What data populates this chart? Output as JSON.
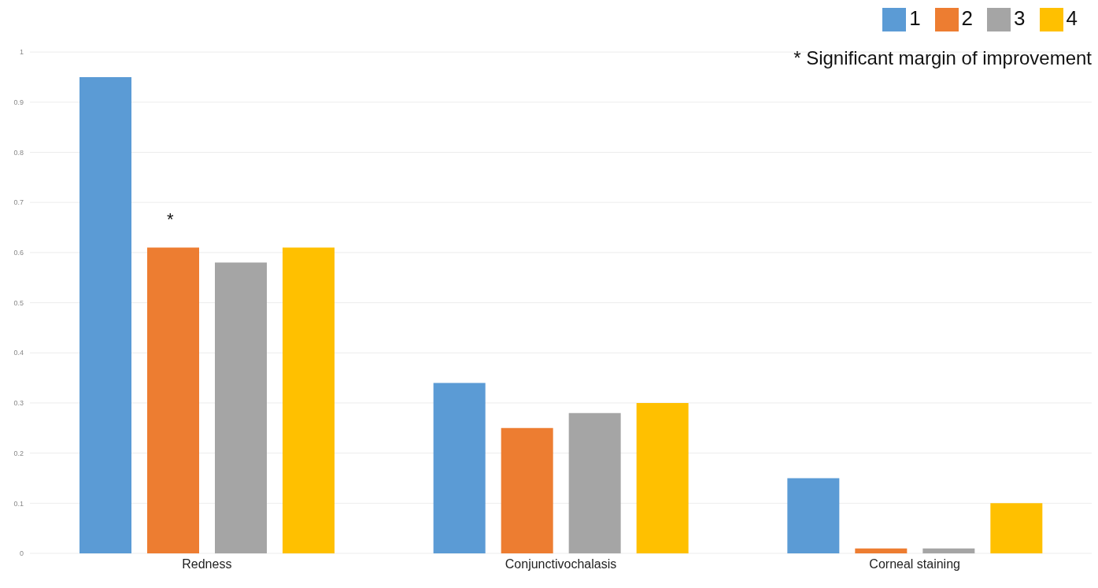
{
  "chart_data": {
    "type": "bar",
    "categories": [
      "Redness",
      "Conjunctivochalasis",
      "Corneal staining"
    ],
    "series": [
      {
        "name": "1",
        "color": "#5b9bd5",
        "values": [
          0.95,
          0.34,
          0.15
        ]
      },
      {
        "name": "2",
        "color": "#ed7d31",
        "values": [
          0.61,
          0.25,
          0.01
        ]
      },
      {
        "name": "3",
        "color": "#a5a5a5",
        "values": [
          0.58,
          0.28,
          0.01
        ]
      },
      {
        "name": "4",
        "color": "#ffc000",
        "values": [
          0.61,
          0.3,
          0.1
        ]
      }
    ],
    "ylim": [
      0,
      1
    ],
    "yticks": [
      0,
      0.1,
      0.2,
      0.3,
      0.4,
      0.5,
      0.6,
      0.7,
      0.8,
      0.9,
      1
    ],
    "grid": "y",
    "legend": "top right",
    "annotations": [
      "*",
      "* Significant margin of improvement"
    ]
  }
}
